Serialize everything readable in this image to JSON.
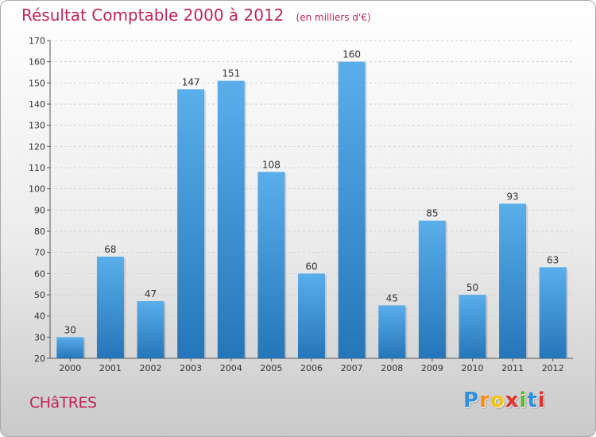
{
  "title": "Résultat Comptable 2000 à 2012",
  "subtitle": "(en milliers d'€)",
  "place": "CHâTRES",
  "logo": {
    "letters": [
      "P",
      "r",
      "o",
      "x",
      "i",
      "t",
      "i"
    ],
    "colors": [
      "#2f8fd8",
      "#f28c1c",
      "#f2c21c",
      "#e0332b",
      "#5cb82e",
      "#2f8fd8",
      "#e0332b"
    ]
  },
  "colors": {
    "bar_top": "#5aaeea",
    "bar_bottom": "#2576b9",
    "title": "#c0245c"
  },
  "chart_data": {
    "type": "bar",
    "categories": [
      "2000",
      "2001",
      "2002",
      "2003",
      "2004",
      "2005",
      "2006",
      "2007",
      "2008",
      "2009",
      "2010",
      "2011",
      "2012"
    ],
    "values": [
      30,
      68,
      47,
      147,
      151,
      108,
      60,
      160,
      45,
      85,
      50,
      93,
      63
    ],
    "ylim": [
      20,
      170
    ],
    "yticks": [
      20,
      30,
      40,
      50,
      60,
      70,
      80,
      90,
      100,
      110,
      120,
      130,
      140,
      150,
      160,
      170
    ],
    "grid": true
  }
}
